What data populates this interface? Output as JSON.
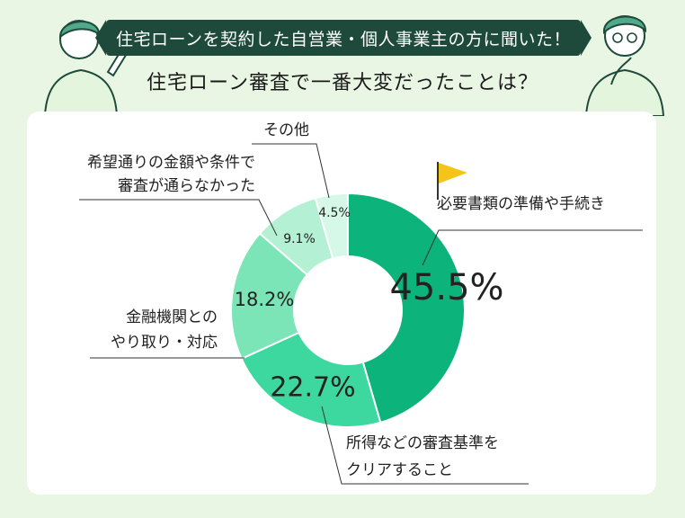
{
  "header": {
    "banner": "住宅ローンを契約した自営業・個人事業主の方に聞いた！",
    "subtitle": "住宅ローン審査で一番大変だったことは？"
  },
  "chart_data": {
    "type": "pie",
    "title": "住宅ローン審査で一番大変だったことは？",
    "slices": [
      {
        "label_lines": [
          "必要書類の準備や手続き"
        ],
        "value": 45.5,
        "value_text": "45.5%",
        "color": "#0cb37a"
      },
      {
        "label_lines": [
          "所得などの審査基準を",
          "クリアすること"
        ],
        "value": 22.7,
        "value_text": "22.7%",
        "color": "#3cd89f"
      },
      {
        "label_lines": [
          "金融機関との",
          "やり取り・対応"
        ],
        "value": 18.2,
        "value_text": "18.2%",
        "color": "#7ce5b8"
      },
      {
        "label_lines": [
          "希望通りの金額や条件で",
          "審査が通らなかった"
        ],
        "value": 9.1,
        "value_text": "9.1%",
        "color": "#b3f0d4"
      },
      {
        "label_lines": [
          "その他"
        ],
        "value": 4.5,
        "value_text": "4.5%",
        "color": "#d6f8e8"
      }
    ]
  },
  "colors": {
    "banner_bg": "#1e4a3b",
    "page_bg": "#eaf6e4",
    "flag": "#f4c518"
  },
  "icons": [
    "person-pointing-icon",
    "person-thinking-icon",
    "flag-icon"
  ]
}
